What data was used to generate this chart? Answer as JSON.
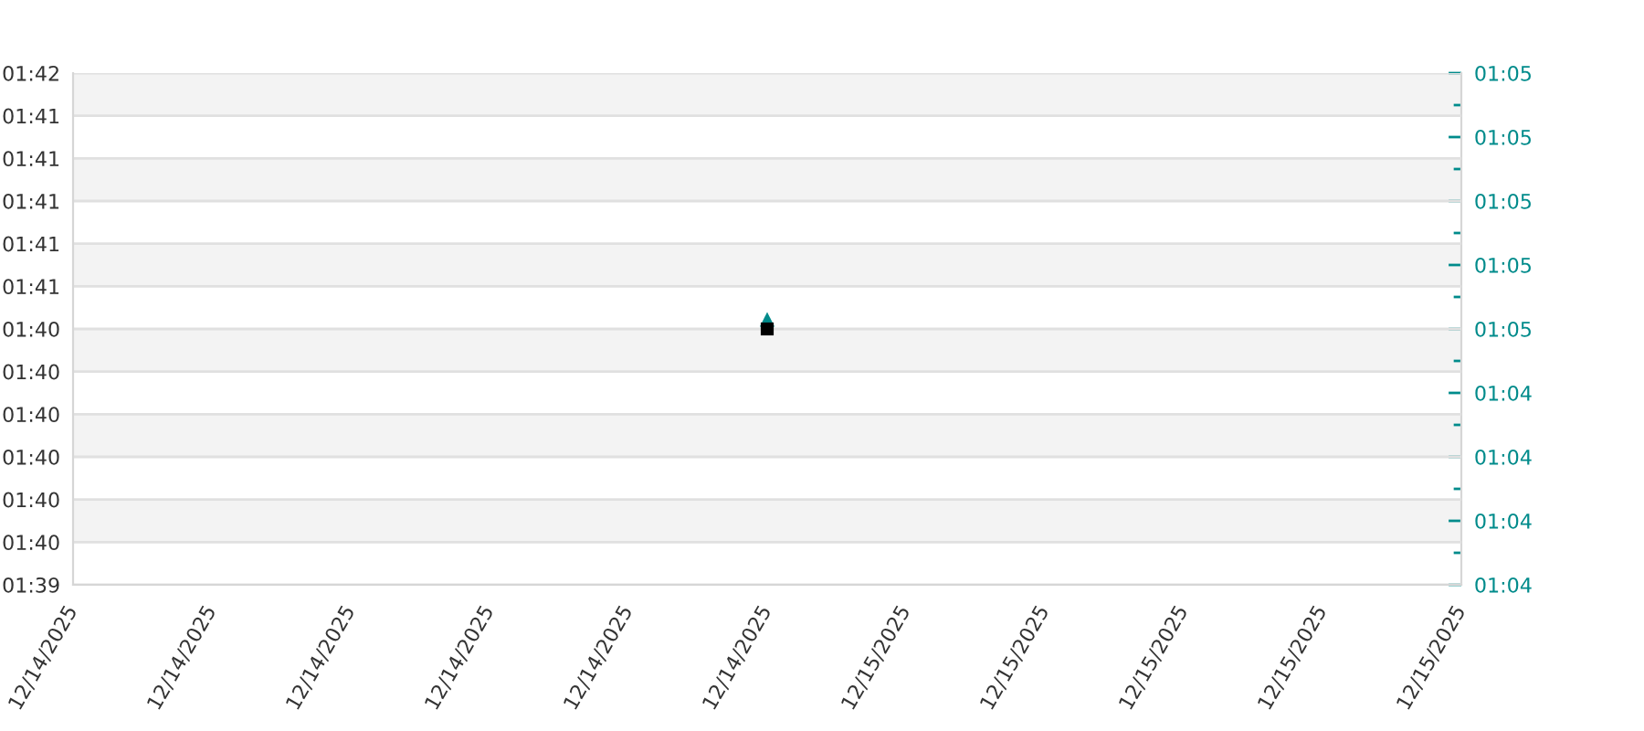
{
  "chart_data": {
    "type": "scatter",
    "x": [
      "2025-12-14T23:30"
    ],
    "xlim": [
      "2025-12-14T18:30",
      "2025-12-15T04:30"
    ],
    "xticks": [
      {
        "value": "2025-12-14T18:30",
        "label": "12/14/2025"
      },
      {
        "value": "2025-12-14T19:30",
        "label": "12/14/2025"
      },
      {
        "value": "2025-12-14T20:30",
        "label": "12/14/2025"
      },
      {
        "value": "2025-12-14T21:30",
        "label": "12/14/2025"
      },
      {
        "value": "2025-12-14T22:30",
        "label": "12/14/2025"
      },
      {
        "value": "2025-12-14T23:30",
        "label": "12/14/2025"
      },
      {
        "value": "2025-12-15T00:30",
        "label": "12/15/2025"
      },
      {
        "value": "2025-12-15T01:30",
        "label": "12/15/2025"
      },
      {
        "value": "2025-12-15T02:30",
        "label": "12/15/2025"
      },
      {
        "value": "2025-12-15T03:30",
        "label": "12/15/2025"
      },
      {
        "value": "2025-12-15T04:30",
        "label": "12/15/2025"
      }
    ],
    "ylim": [
      99.36,
      101.52
    ],
    "yticks": [
      {
        "value": 99.36,
        "label": "01:39"
      },
      {
        "value": 99.54,
        "label": "01:40"
      },
      {
        "value": 99.72,
        "label": "01:40"
      },
      {
        "value": 99.9,
        "label": "01:40"
      },
      {
        "value": 100.08,
        "label": "01:40"
      },
      {
        "value": 100.26,
        "label": "01:40"
      },
      {
        "value": 100.44,
        "label": "01:40"
      },
      {
        "value": 100.62,
        "label": "01:41"
      },
      {
        "value": 100.8,
        "label": "01:41"
      },
      {
        "value": 100.98,
        "label": "01:41"
      },
      {
        "value": 101.16,
        "label": "01:41"
      },
      {
        "value": 101.34,
        "label": "01:41"
      },
      {
        "value": 101.52,
        "label": "01:42"
      }
    ],
    "y2lim": [
      63.8,
      65.4
    ],
    "y2ticks": [
      {
        "value": 63.8,
        "label": "01:04"
      },
      {
        "value": 63.9,
        "label": null
      },
      {
        "value": 64.0,
        "label": "01:04"
      },
      {
        "value": 64.1,
        "label": null
      },
      {
        "value": 64.2,
        "label": "01:04"
      },
      {
        "value": 64.3,
        "label": null
      },
      {
        "value": 64.4,
        "label": "01:04"
      },
      {
        "value": 64.5,
        "label": null
      },
      {
        "value": 64.6,
        "label": "01:05"
      },
      {
        "value": 64.7,
        "label": null
      },
      {
        "value": 64.8,
        "label": "01:05"
      },
      {
        "value": 64.9,
        "label": null
      },
      {
        "value": 65.0,
        "label": "01:05"
      },
      {
        "value": 65.1,
        "label": null
      },
      {
        "value": 65.2,
        "label": "01:05"
      },
      {
        "value": 65.3,
        "label": null
      },
      {
        "value": 65.4,
        "label": "01:05"
      }
    ],
    "series": [
      {
        "color": "#000000",
        "marker": "square",
        "values": [
          100.44
        ]
      },
      {
        "axis": "y2",
        "color": "#008b8b",
        "marker": "triangle",
        "values": [
          64.63
        ]
      }
    ],
    "grid": "y"
  }
}
